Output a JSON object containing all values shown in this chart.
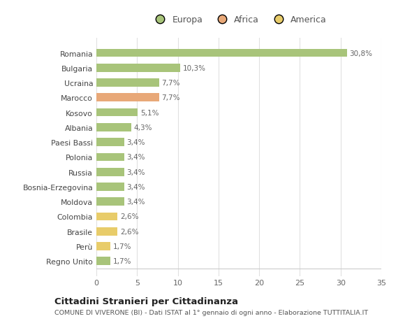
{
  "categories": [
    "Romania",
    "Bulgaria",
    "Ucraina",
    "Marocco",
    "Kosovo",
    "Albania",
    "Paesi Bassi",
    "Polonia",
    "Russia",
    "Bosnia-Erzegovina",
    "Moldova",
    "Colombia",
    "Brasile",
    "Perù",
    "Regno Unito"
  ],
  "values": [
    30.8,
    10.3,
    7.7,
    7.7,
    5.1,
    4.3,
    3.4,
    3.4,
    3.4,
    3.4,
    3.4,
    2.6,
    2.6,
    1.7,
    1.7
  ],
  "labels": [
    "30,8%",
    "10,3%",
    "7,7%",
    "7,7%",
    "5,1%",
    "4,3%",
    "3,4%",
    "3,4%",
    "3,4%",
    "3,4%",
    "3,4%",
    "2,6%",
    "2,6%",
    "1,7%",
    "1,7%"
  ],
  "continent": [
    "Europa",
    "Europa",
    "Europa",
    "Africa",
    "Europa",
    "Europa",
    "Europa",
    "Europa",
    "Europa",
    "Europa",
    "Europa",
    "America",
    "America",
    "America",
    "Europa"
  ],
  "bar_colors": [
    "#a8c47a",
    "#a8c47a",
    "#a8c47a",
    "#e8a878",
    "#a8c47a",
    "#a8c47a",
    "#a8c47a",
    "#a8c47a",
    "#a8c47a",
    "#a8c47a",
    "#a8c47a",
    "#e8cc6a",
    "#e8cc6a",
    "#e8cc6a",
    "#a8c47a"
  ],
  "xlim": [
    0,
    35
  ],
  "xticks": [
    0,
    5,
    10,
    15,
    20,
    25,
    30,
    35
  ],
  "title": "Cittadini Stranieri per Cittadinanza",
  "subtitle": "COMUNE DI VIVERONE (BI) - Dati ISTAT al 1° gennaio di ogni anno - Elaborazione TUTTITALIA.IT",
  "legend_labels": [
    "Europa",
    "Africa",
    "America"
  ],
  "legend_colors": [
    "#a8c47a",
    "#e8a878",
    "#e8cc6a"
  ],
  "background_color": "#ffffff",
  "grid_color": "#e0e0e0"
}
